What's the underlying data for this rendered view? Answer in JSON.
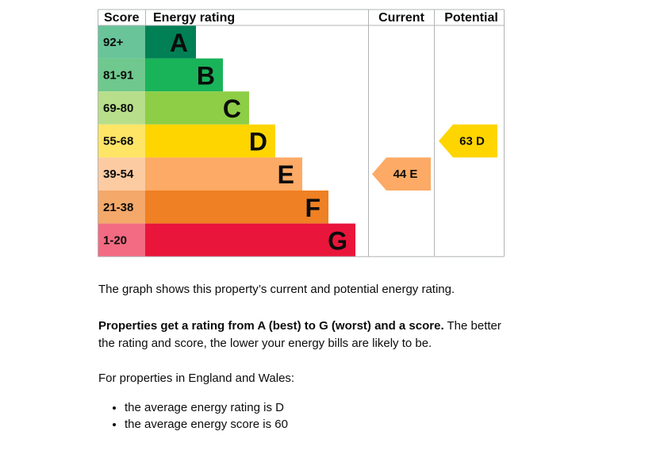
{
  "chart_data": {
    "type": "bar",
    "columns": {
      "score": "Score",
      "rating": "Energy rating",
      "current": "Current",
      "potential": "Potential"
    },
    "bands": [
      {
        "letter": "A",
        "range": "92+",
        "color": "#008054",
        "score_color": "#69c49a"
      },
      {
        "letter": "B",
        "range": "81-91",
        "color": "#19b459",
        "score_color": "#6fc88d"
      },
      {
        "letter": "C",
        "range": "69-80",
        "color": "#8dce46",
        "score_color": "#b7de8a"
      },
      {
        "letter": "D",
        "range": "55-68",
        "color": "#ffd500",
        "score_color": "#ffe566"
      },
      {
        "letter": "E",
        "range": "39-54",
        "color": "#fcaa65",
        "score_color": "#fdcba1"
      },
      {
        "letter": "F",
        "range": "21-38",
        "color": "#ef8023",
        "score_color": "#f4a86a"
      },
      {
        "letter": "G",
        "range": "1-20",
        "color": "#e9153b",
        "score_color": "#f26b82"
      }
    ],
    "current": {
      "score": 44,
      "letter": "E",
      "label": "44 E",
      "color": "#fcaa65"
    },
    "potential": {
      "score": 63,
      "letter": "D",
      "label": "63 D",
      "color": "#ffd500"
    }
  },
  "text": {
    "intro": "The graph shows this property’s current and potential energy rating.",
    "rating_bold": "Properties get a rating from A (best) to G (worst) and a score.",
    "rating_rest": " The better the rating and score, the lower your energy bills are likely to be.",
    "region": "For properties in England and Wales:",
    "bullets": [
      "the average energy rating is D",
      "the average energy score is 60"
    ]
  }
}
